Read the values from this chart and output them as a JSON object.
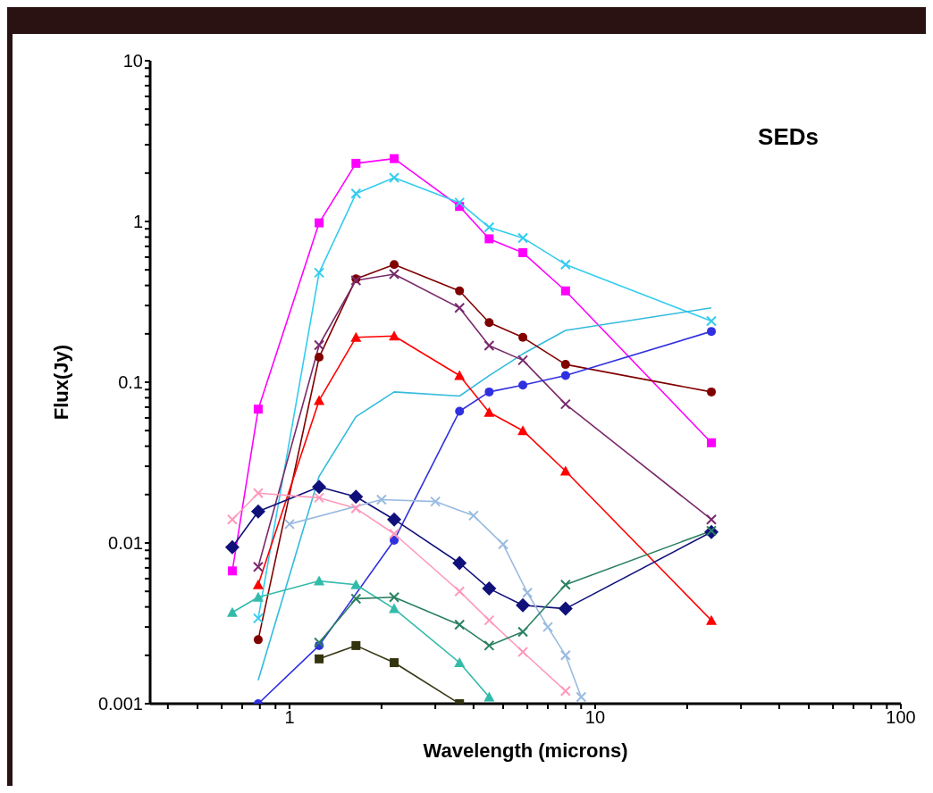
{
  "chart_data": {
    "type": "line",
    "title": "SEDs",
    "xlabel": "Wavelength (microns)",
    "ylabel": "Flux(Jy)",
    "log": "xy",
    "xlim": [
      0.35,
      100
    ],
    "xticks": [
      {
        "value": 0.4,
        "label": null
      },
      {
        "value": 0.5,
        "label": null
      },
      {
        "value": 0.6,
        "label": null
      },
      {
        "value": 0.7,
        "label": null
      },
      {
        "value": 0.8,
        "label": null
      },
      {
        "value": 0.9,
        "label": null
      },
      1,
      {
        "value": 2,
        "label": null
      },
      {
        "value": 3,
        "label": null
      },
      {
        "value": 4,
        "label": null
      },
      {
        "value": 5,
        "label": null
      },
      {
        "value": 6,
        "label": null
      },
      {
        "value": 7,
        "label": null
      },
      {
        "value": 8,
        "label": null
      },
      {
        "value": 9,
        "label": null
      },
      10,
      {
        "value": 20,
        "label": null
      },
      {
        "value": 30,
        "label": null
      },
      {
        "value": 40,
        "label": null
      },
      {
        "value": 50,
        "label": null
      },
      {
        "value": 60,
        "label": null
      },
      {
        "value": 70,
        "label": null
      },
      {
        "value": 80,
        "label": null
      },
      {
        "value": 90,
        "label": null
      },
      100
    ],
    "ylim": [
      0.001,
      10
    ],
    "yticks": [
      0.001,
      {
        "value": 0.002,
        "label": null
      },
      {
        "value": 0.003,
        "label": null
      },
      {
        "value": 0.004,
        "label": null
      },
      {
        "value": 0.005,
        "label": null
      },
      {
        "value": 0.006,
        "label": null
      },
      {
        "value": 0.007,
        "label": null
      },
      {
        "value": 0.008,
        "label": null
      },
      {
        "value": 0.009,
        "label": null
      },
      0.01,
      {
        "value": 0.02,
        "label": null
      },
      {
        "value": 0.03,
        "label": null
      },
      {
        "value": 0.04,
        "label": null
      },
      {
        "value": 0.05,
        "label": null
      },
      {
        "value": 0.06,
        "label": null
      },
      {
        "value": 0.07,
        "label": null
      },
      {
        "value": 0.08,
        "label": null
      },
      {
        "value": 0.09,
        "label": null
      },
      0.1,
      {
        "value": 0.2,
        "label": null
      },
      {
        "value": 0.3,
        "label": null
      },
      {
        "value": 0.4,
        "label": null
      },
      {
        "value": 0.5,
        "label": null
      },
      {
        "value": 0.6,
        "label": null
      },
      {
        "value": 0.7,
        "label": null
      },
      {
        "value": 0.8,
        "label": null
      },
      {
        "value": 0.9,
        "label": null
      },
      1,
      {
        "value": 2,
        "label": null
      },
      {
        "value": 3,
        "label": null
      },
      {
        "value": 4,
        "label": null
      },
      {
        "value": 5,
        "label": null
      },
      {
        "value": 6,
        "label": null
      },
      {
        "value": 7,
        "label": null
      },
      {
        "value": 8,
        "label": null
      },
      {
        "value": 9,
        "label": null
      },
      10
    ],
    "series": [
      {
        "color": "#ff00ff",
        "marker": "square",
        "x": [
          0.65,
          0.79,
          1.25,
          1.65,
          2.2,
          3.6,
          4.5,
          5.8,
          8.0,
          24
        ],
        "values": [
          0.0067,
          0.068,
          0.98,
          2.3,
          2.46,
          1.24,
          0.78,
          0.64,
          0.37,
          0.042
        ]
      },
      {
        "color": "#33ccee",
        "marker": "cross",
        "x": [
          0.79,
          1.25,
          1.65,
          2.2,
          3.6,
          4.5,
          5.8,
          8.0,
          24
        ],
        "values": [
          0.0034,
          0.48,
          1.49,
          1.87,
          1.31,
          0.92,
          0.79,
          0.54,
          0.24
        ]
      },
      {
        "color": "#33bbdd",
        "marker": "none",
        "x": [
          0.79,
          1.25,
          1.65,
          2.2,
          3.6,
          4.5,
          5.8,
          8.0,
          24
        ],
        "values": [
          0.0014,
          0.026,
          0.061,
          0.087,
          0.082,
          0.11,
          0.15,
          0.21,
          0.29
        ]
      },
      {
        "color": "#800000",
        "marker": "circle",
        "x": [
          0.79,
          1.25,
          1.65,
          2.2,
          3.6,
          4.5,
          5.8,
          8.0,
          24
        ],
        "values": [
          0.0025,
          0.143,
          0.44,
          0.54,
          0.37,
          0.235,
          0.19,
          0.129,
          0.087
        ]
      },
      {
        "color": "#7a2a6a",
        "marker": "cross",
        "x": [
          0.79,
          1.25,
          1.65,
          2.2,
          3.6,
          4.5,
          5.8,
          8.0,
          24
        ],
        "values": [
          0.0071,
          0.17,
          0.43,
          0.47,
          0.29,
          0.169,
          0.137,
          0.073,
          0.014
        ]
      },
      {
        "color": "#ff0000",
        "marker": "triangle",
        "x": [
          0.79,
          1.25,
          1.65,
          2.2,
          3.6,
          4.5,
          5.8,
          8.0,
          24
        ],
        "values": [
          0.0055,
          0.077,
          0.19,
          0.194,
          0.11,
          0.065,
          0.05,
          0.028,
          0.0033
        ]
      },
      {
        "color": "#3030e0",
        "marker": "circle",
        "x": [
          0.79,
          1.25,
          2.2,
          3.6,
          4.5,
          5.8,
          8.0,
          24
        ],
        "values": [
          0.001,
          0.0023,
          0.0104,
          0.066,
          0.087,
          0.096,
          0.11,
          0.207
        ]
      },
      {
        "color": "#10107a",
        "marker": "diamond",
        "x": [
          0.65,
          0.79,
          1.25,
          1.65,
          2.2,
          3.6,
          4.5,
          5.8,
          8.0,
          24
        ],
        "values": [
          0.0094,
          0.0157,
          0.0223,
          0.0194,
          0.014,
          0.0075,
          0.0052,
          0.0041,
          0.0039,
          0.0117
        ]
      },
      {
        "color": "#ff99bb",
        "marker": "cross",
        "x": [
          0.65,
          0.79,
          1.25,
          1.65,
          2.2,
          3.6,
          4.5,
          5.8,
          8.0
        ],
        "values": [
          0.014,
          0.0204,
          0.0191,
          0.0164,
          0.0114,
          0.005,
          0.0033,
          0.0021,
          0.0012
        ]
      },
      {
        "color": "#99bbe0",
        "marker": "cross",
        "x": [
          1,
          2,
          3,
          4,
          5,
          6,
          7,
          8,
          9
        ],
        "values": [
          0.0131,
          0.0186,
          0.0181,
          0.0148,
          0.0098,
          0.0049,
          0.003,
          0.002,
          0.0011
        ]
      },
      {
        "color": "#33bbaa",
        "marker": "triangle",
        "x": [
          0.65,
          0.79,
          1.25,
          1.65,
          2.2,
          3.6,
          4.5
        ],
        "values": [
          0.0037,
          0.0046,
          0.0058,
          0.0055,
          0.0039,
          0.0018,
          0.0011
        ]
      },
      {
        "color": "#2a8060",
        "marker": "cross",
        "x": [
          1.25,
          1.65,
          2.2,
          3.6,
          4.5,
          5.8,
          8.0,
          24
        ],
        "values": [
          0.0024,
          0.0045,
          0.0046,
          0.0031,
          0.0023,
          0.0028,
          0.0055,
          0.0119
        ]
      },
      {
        "color": "#333310",
        "marker": "square",
        "x": [
          1.25,
          1.65,
          2.2,
          3.6
        ],
        "values": [
          0.0019,
          0.0023,
          0.0018,
          0.001
        ]
      }
    ]
  }
}
